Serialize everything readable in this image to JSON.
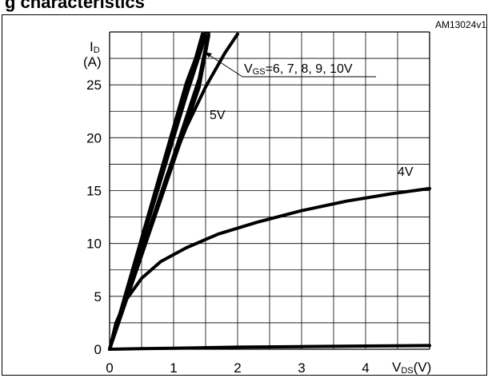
{
  "header": {
    "title_fragment": "g characteristics"
  },
  "figure_id": "AM13024v1",
  "chart_data": {
    "type": "line",
    "title": "",
    "xlabel": "VDS(V)",
    "ylabel": "ID (A)",
    "xlim": [
      0,
      5
    ],
    "ylim": [
      0,
      30
    ],
    "xticks": [
      "0",
      "1",
      "2",
      "3",
      "4"
    ],
    "yticks": [
      "0",
      "5",
      "10",
      "15",
      "20",
      "25"
    ],
    "grid": true,
    "series": [
      {
        "name": "VGS=6, 7, 8, 9, 10V",
        "x": [
          0,
          0.3,
          0.6,
          0.9,
          1.2,
          1.5
        ],
        "y": [
          0,
          6.3,
          12.6,
          18.9,
          25.2,
          30
        ]
      },
      {
        "name": "VGS=6, 7, 8, 9, 10V",
        "x": [
          0,
          0.3,
          0.6,
          0.9,
          1.2,
          1.45
        ],
        "y": [
          0,
          6.1,
          12.2,
          18.3,
          24.4,
          29.8
        ]
      },
      {
        "name": "VGS=6, 7, 8, 9, 10V",
        "x": [
          0,
          0.3,
          0.6,
          0.9,
          1.2,
          1.5
        ],
        "y": [
          0,
          6.0,
          12.0,
          18.0,
          24.0,
          29.6
        ]
      },
      {
        "name": "VGS=6, 7, 8, 9, 10V",
        "x": [
          0,
          0.35,
          0.7,
          1.05,
          1.4,
          1.55
        ],
        "y": [
          0,
          6.4,
          12.8,
          19.2,
          25.6,
          30
        ]
      },
      {
        "name": "VGS=6, 7, 8, 9, 10V",
        "x": [
          0,
          0.35,
          0.7,
          1.05,
          1.4,
          1.55
        ],
        "y": [
          0,
          6.2,
          12.4,
          18.6,
          24.8,
          29.7
        ]
      },
      {
        "name": "5V",
        "x": [
          0,
          0.3,
          0.6,
          0.9,
          1.2,
          1.5,
          1.8,
          2.0
        ],
        "y": [
          0,
          5.5,
          11.0,
          16.5,
          21.0,
          24.8,
          28.0,
          29.8
        ]
      },
      {
        "name": "4V",
        "x": [
          0,
          0.1,
          0.25,
          0.5,
          0.8,
          1.2,
          1.7,
          2.3,
          3.0,
          3.7,
          4.4,
          5.0
        ],
        "y": [
          0,
          2.5,
          4.6,
          6.7,
          8.3,
          9.6,
          10.9,
          12.0,
          13.1,
          14.0,
          14.7,
          15.2
        ]
      },
      {
        "name": "",
        "x": [
          0,
          0.5,
          1,
          2,
          3,
          4,
          5
        ],
        "y": [
          0,
          0.05,
          0.1,
          0.2,
          0.25,
          0.3,
          0.35
        ]
      }
    ],
    "curve_labels": [
      "VGS=6, 7, 8, 9, 10V",
      "5V",
      "4V"
    ]
  }
}
